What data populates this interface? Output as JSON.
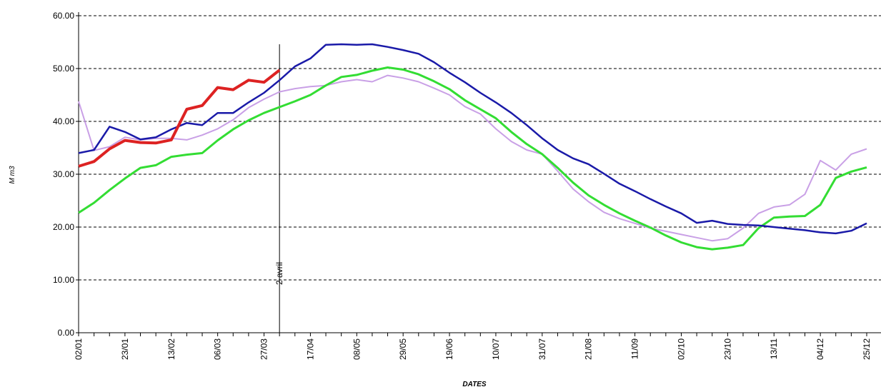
{
  "chart_data": {
    "type": "line",
    "ylabel": "M m3",
    "xlabel": "DATES",
    "annotation": "2 avril",
    "categories": [
      "02/01",
      null,
      null,
      "23/01",
      null,
      null,
      "13/02",
      null,
      null,
      "06/03",
      null,
      null,
      "27/03",
      null,
      null,
      "17/04",
      null,
      null,
      "08/05",
      null,
      null,
      "29/05",
      null,
      null,
      "19/06",
      null,
      null,
      "10/07",
      null,
      null,
      "31/07",
      null,
      null,
      "21/08",
      null,
      null,
      "11/09",
      null,
      null,
      "02/10",
      null,
      null,
      "23/10",
      null,
      null,
      "13/11",
      null,
      null,
      "04/12",
      null,
      null,
      "25/12"
    ],
    "ylim": [
      0,
      60
    ],
    "yticks": [
      {
        "value": 0,
        "label": "0.00"
      },
      {
        "value": 10,
        "label": "10.00"
      },
      {
        "value": 20,
        "label": "20.00"
      },
      {
        "value": 30,
        "label": "30.00"
      },
      {
        "value": 40,
        "label": "40.00"
      },
      {
        "value": 50,
        "label": "50.00"
      },
      {
        "value": 60,
        "label": "60.00"
      }
    ],
    "grid": true,
    "series": [
      {
        "color": "#c9a0e6",
        "width": 2,
        "values": [
          43.8,
          34.5,
          35.2,
          37.0,
          36.5,
          36.8,
          36.8,
          36.5,
          37.4,
          38.6,
          40.3,
          42.6,
          44.2,
          45.6,
          46.2,
          46.6,
          46.8,
          47.5,
          47.9,
          47.5,
          48.7,
          48.2,
          47.5,
          46.3,
          45.0,
          42.8,
          41.4,
          38.6,
          36.2,
          34.6,
          33.8,
          30.6,
          27.2,
          24.8,
          22.8,
          21.6,
          20.7,
          19.8,
          19.2,
          18.6,
          18.0,
          17.4,
          17.8,
          19.8,
          22.6,
          23.8,
          24.2,
          26.2,
          32.6,
          30.8,
          33.8,
          34.8
        ]
      },
      {
        "color": "#33dd33",
        "width": 3,
        "values": [
          22.7,
          24.6,
          27.0,
          29.2,
          31.2,
          31.7,
          33.3,
          33.7,
          34.0,
          36.4,
          38.5,
          40.2,
          41.6,
          42.7,
          43.8,
          45.0,
          46.8,
          48.4,
          48.8,
          49.6,
          50.2,
          49.8,
          48.9,
          47.6,
          46.1,
          44.0,
          42.3,
          40.6,
          38.0,
          35.7,
          33.8,
          31.2,
          28.4,
          26.0,
          24.2,
          22.6,
          21.2,
          19.9,
          18.4,
          17.1,
          16.2,
          15.8,
          16.1,
          16.6,
          19.8,
          21.8,
          22.0,
          22.1,
          24.2,
          29.3,
          30.5,
          31.3
        ]
      },
      {
        "color": "#1a1aa8",
        "width": 2.5,
        "values": [
          34.0,
          34.6,
          39.0,
          38.0,
          36.6,
          37.0,
          38.5,
          39.7,
          39.3,
          41.6,
          41.6,
          43.6,
          45.4,
          47.8,
          50.4,
          51.9,
          54.5,
          54.6,
          54.5,
          54.6,
          54.1,
          53.5,
          52.8,
          51.2,
          49.2,
          47.4,
          45.4,
          43.6,
          41.6,
          39.3,
          36.8,
          34.6,
          33.0,
          31.9,
          30.1,
          28.2,
          26.8,
          25.3,
          23.9,
          22.6,
          20.8,
          21.2,
          20.6,
          20.4,
          20.3,
          20.0,
          19.7,
          19.4,
          19.0,
          18.8,
          19.3,
          20.7
        ]
      },
      {
        "color": "#dd2222",
        "width": 4,
        "values": [
          31.5,
          32.4,
          34.8,
          36.4,
          36.0,
          35.9,
          36.5,
          42.3,
          43.0,
          46.4,
          46.0,
          47.8,
          47.4,
          49.7,
          null,
          null,
          null,
          null,
          null,
          null,
          null,
          null,
          null,
          null,
          null,
          null,
          null,
          null,
          null,
          null,
          null,
          null,
          null,
          null,
          null,
          null,
          null,
          null,
          null,
          null,
          null,
          null,
          null,
          null,
          null,
          null,
          null,
          null,
          null,
          null,
          null,
          null
        ]
      }
    ]
  }
}
